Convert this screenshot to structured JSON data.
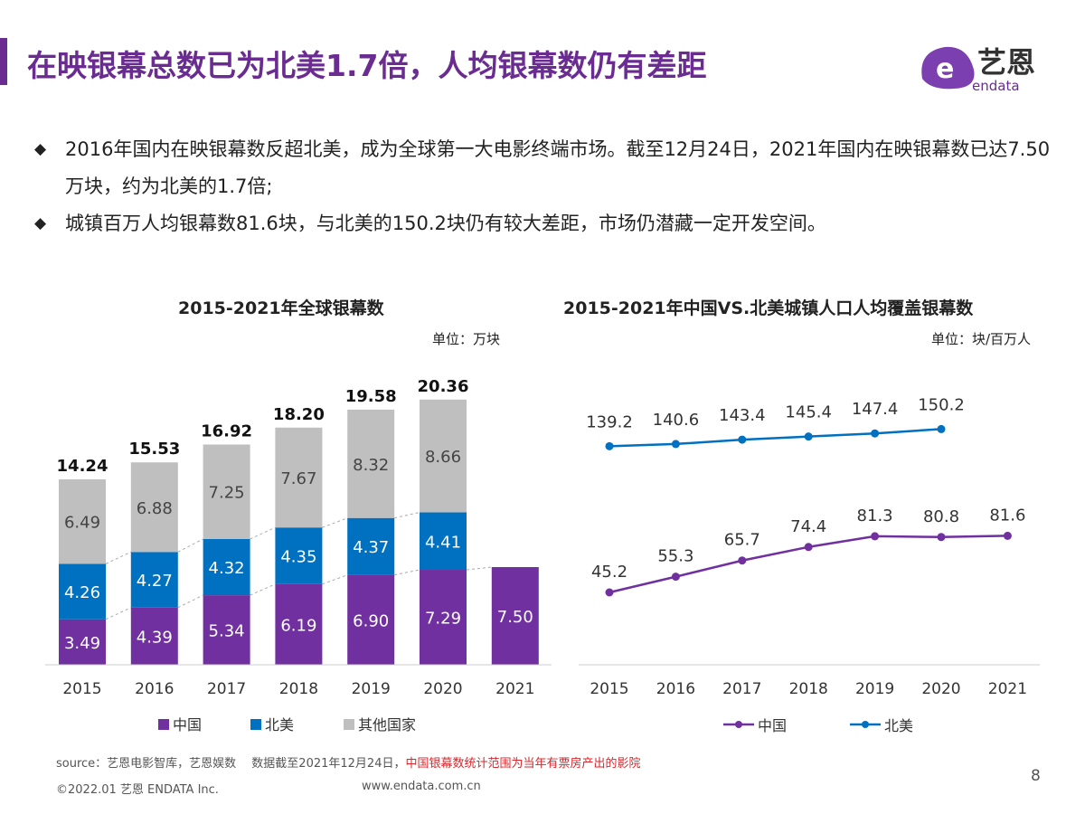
{
  "header": {
    "title": "在映银幕总数已为北美1.7倍，人均银幕数仍有差距",
    "logo_cn": "艺恩",
    "logo_en": "endata"
  },
  "bullets": [
    "2016年国内在映银幕数反超北美，成为全球第一大电影终端市场。截至12月24日，2021年国内在映银幕数已达7.50万块，约为北美的1.7倍;",
    "城镇百万人均银幕数81.6块，与北美的150.2块仍有较大差距，市场仍潜藏一定开发空间。"
  ],
  "colors": {
    "brand": "#6a2c91",
    "china": "#7030a0",
    "north_america": "#0070c0",
    "others": "#bfbfbf",
    "note_red": "#d9262b"
  },
  "chart_data": [
    {
      "type": "bar",
      "stacked": true,
      "title": "2015-2021年全球银幕数",
      "unit": "单位：万块",
      "categories": [
        "2015",
        "2016",
        "2017",
        "2018",
        "2019",
        "2020",
        "2021"
      ],
      "series": [
        {
          "name": "中国",
          "values": [
            3.49,
            4.39,
            5.34,
            6.19,
            6.9,
            7.29,
            7.5
          ]
        },
        {
          "name": "北美",
          "values": [
            4.26,
            4.27,
            4.32,
            4.35,
            4.37,
            4.41,
            null
          ]
        },
        {
          "name": "其他国家",
          "values": [
            6.49,
            6.88,
            7.25,
            7.67,
            8.32,
            8.66,
            null
          ]
        }
      ],
      "totals": [
        "14.24",
        "15.53",
        "16.92",
        "18.20",
        "19.58",
        "20.36",
        ""
      ],
      "legend": "bottom",
      "grid": false
    },
    {
      "type": "line",
      "title": "2015-2021年中国VS.北美城镇人口人均覆盖银幕数",
      "unit": "单位：块/百万人",
      "categories": [
        "2015",
        "2016",
        "2017",
        "2018",
        "2019",
        "2020",
        "2021"
      ],
      "series": [
        {
          "name": "中国",
          "values": [
            45.2,
            55.3,
            65.7,
            74.4,
            81.3,
            80.8,
            81.6
          ]
        },
        {
          "name": "北美",
          "values": [
            139.2,
            140.6,
            143.4,
            145.4,
            147.4,
            150.2,
            null
          ]
        }
      ],
      "legend": "bottom",
      "grid": false
    }
  ],
  "footer": {
    "source": "source：艺恩电影智库，艺恩娱数　 数据截至2021年12月24日，",
    "note": "中国银幕数统计范围为当年有票房产出的影院",
    "copyright": "©2022.01 艺恩 ENDATA Inc.",
    "website": "www.endata.com.cn",
    "page": "8"
  }
}
